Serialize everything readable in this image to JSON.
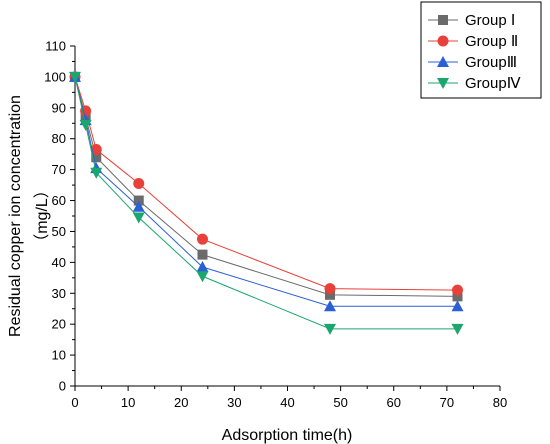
{
  "chart_data": {
    "type": "line",
    "xlabel": "Adsorption time(h)",
    "ylabel_line1": "Residual copper ion concentration",
    "ylabel_line2": "（mg/L）",
    "xlim": [
      0,
      80
    ],
    "ylim": [
      0,
      110
    ],
    "xticks": [
      0,
      10,
      20,
      30,
      40,
      50,
      60,
      70,
      80
    ],
    "yticks": [
      0,
      10,
      20,
      30,
      40,
      50,
      60,
      70,
      80,
      90,
      100,
      110
    ],
    "grid": false,
    "legend_position": "top-right",
    "x": [
      0,
      2,
      4,
      12,
      24,
      48,
      72
    ],
    "series": [
      {
        "name": "Group Ⅰ",
        "values": [
          100,
          87,
          74,
          60,
          42.5,
          29.5,
          29
        ],
        "color": "#6b6b6b",
        "marker": "square"
      },
      {
        "name": "Group Ⅱ",
        "values": [
          100,
          89,
          76.5,
          65.5,
          47.5,
          31.5,
          31
        ],
        "color": "#e8413a",
        "marker": "circle"
      },
      {
        "name": "GroupⅢ",
        "values": [
          100,
          86,
          70.5,
          58,
          38.5,
          25.8,
          25.8
        ],
        "color": "#2a5fd6",
        "marker": "triangle-up"
      },
      {
        "name": "GroupⅣ",
        "values": [
          100,
          84.5,
          69,
          54.5,
          35.5,
          18.5,
          18.5
        ],
        "color": "#1aa66e",
        "marker": "triangle-down"
      }
    ]
  }
}
